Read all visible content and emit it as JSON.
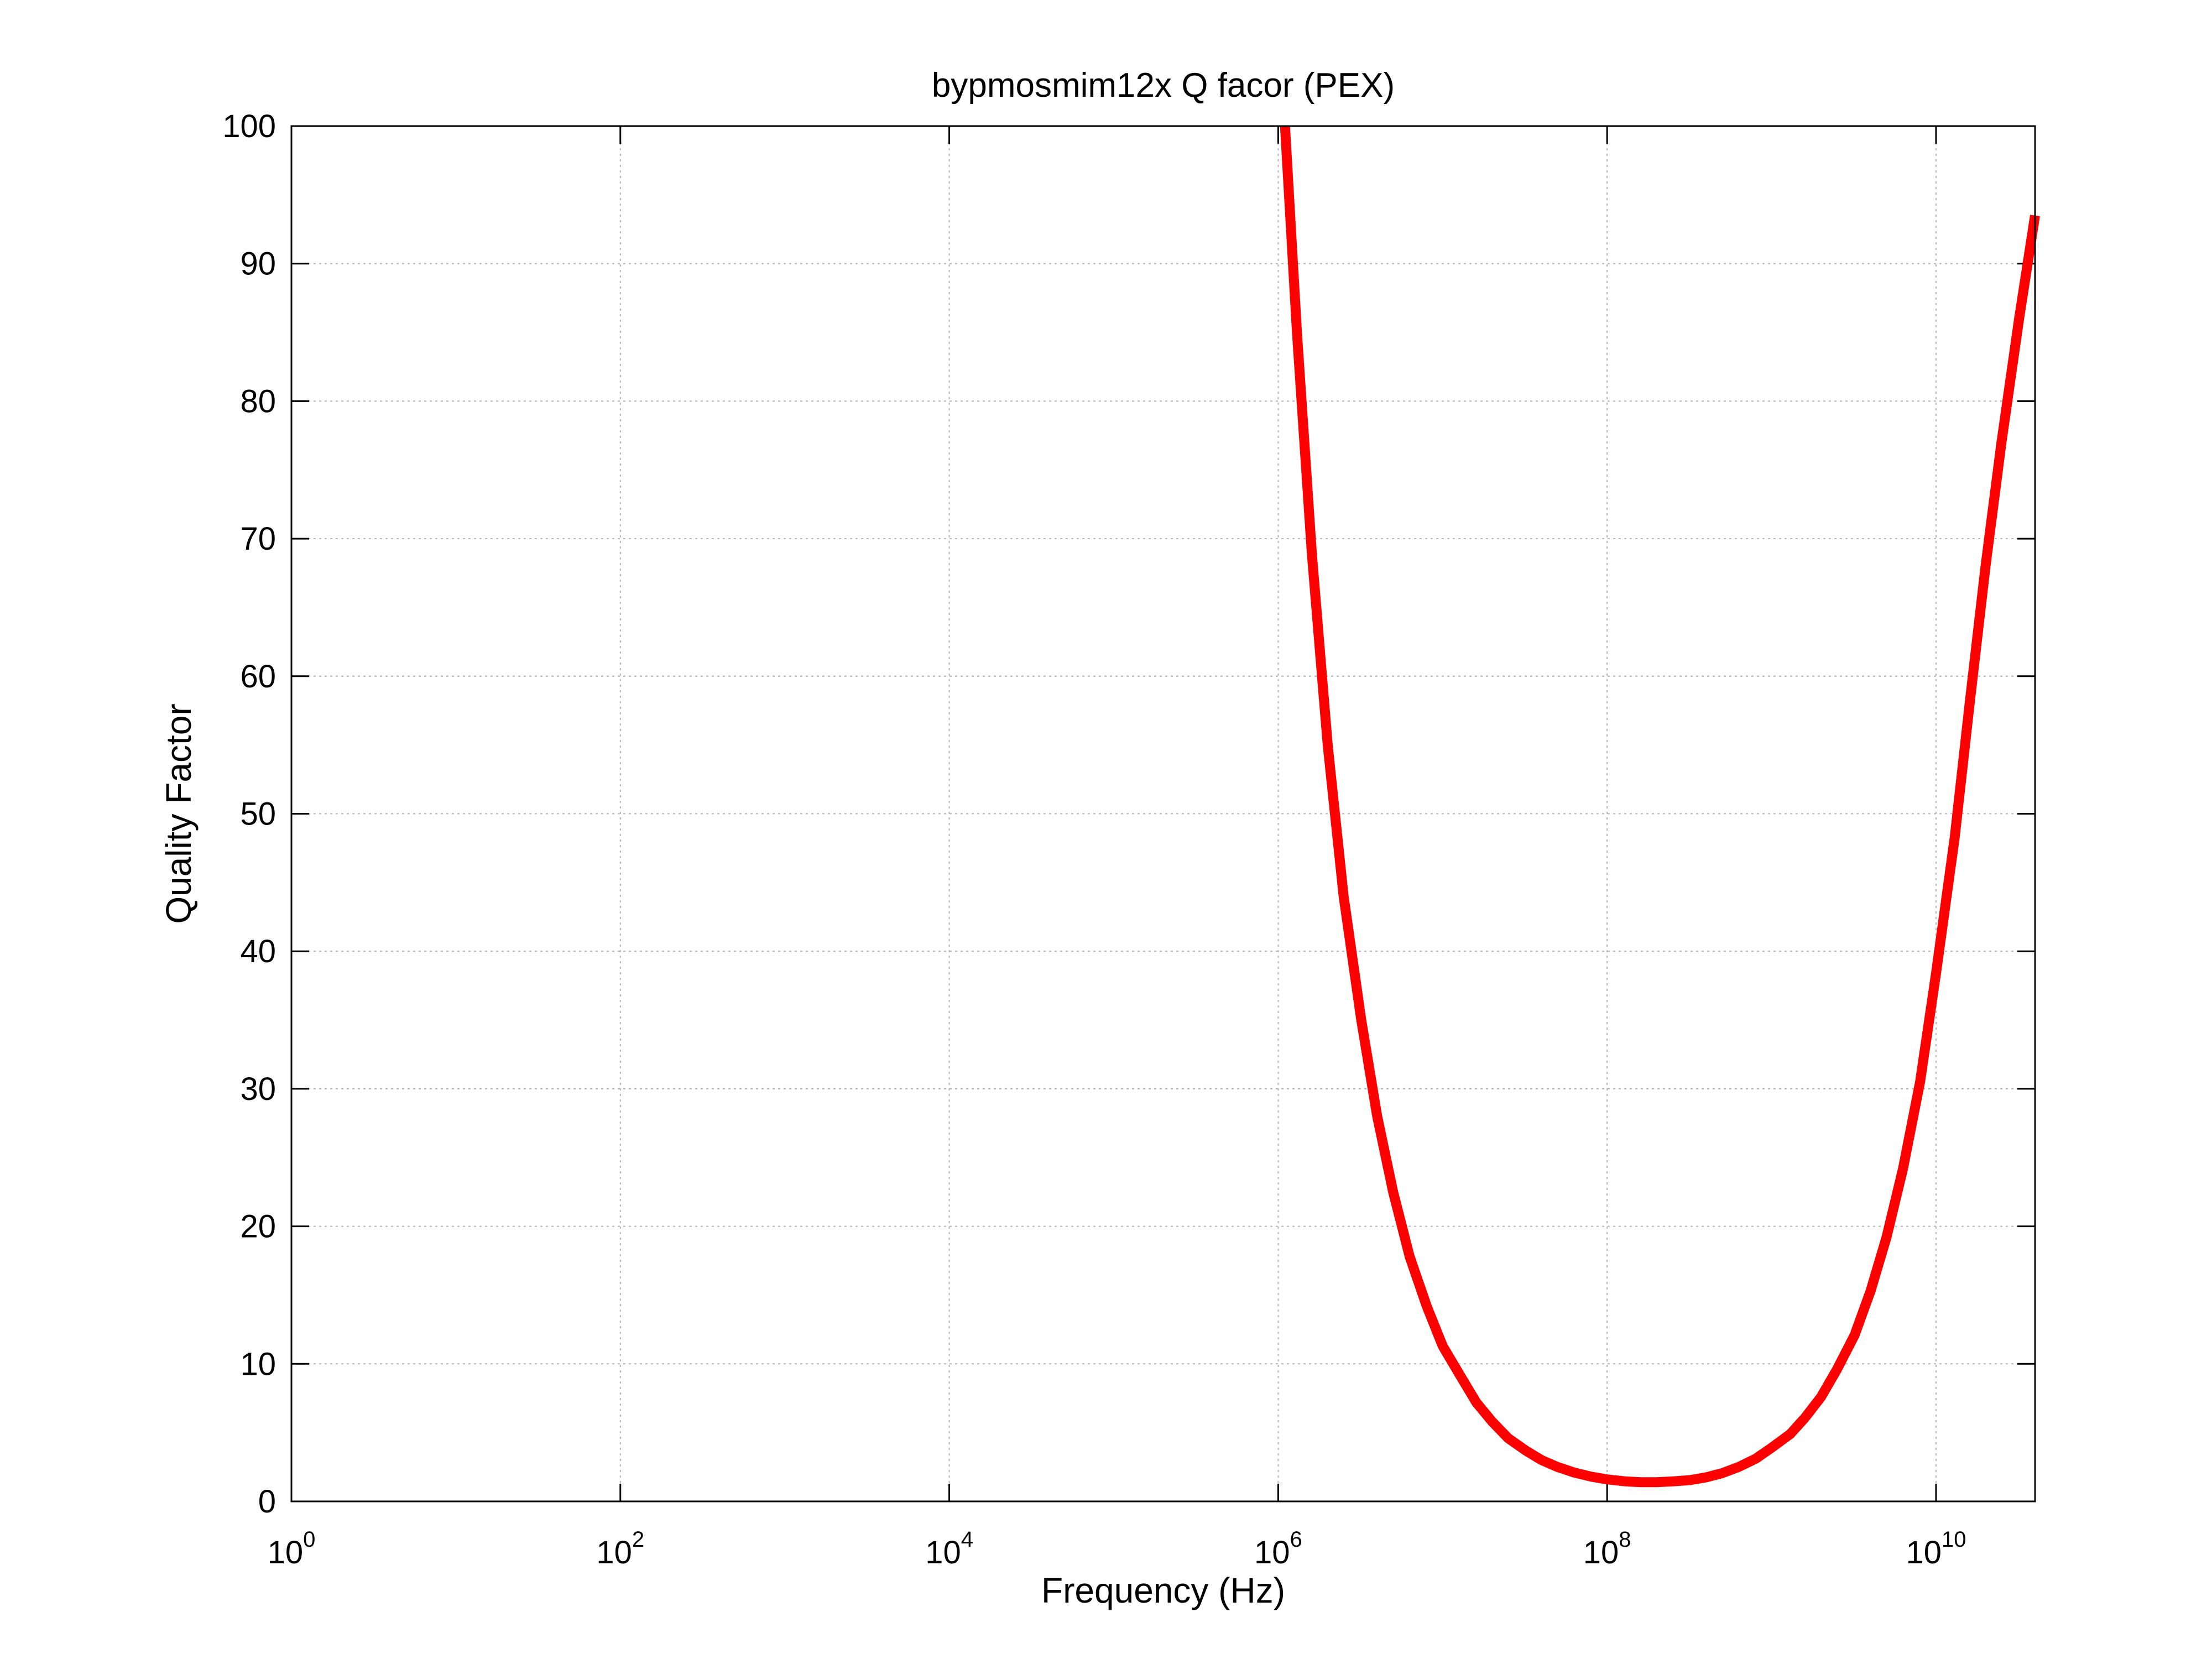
{
  "chart_data": {
    "type": "line",
    "title": "bypmosmim12x Q facor  (PEX)",
    "xlabel": "Frequency (Hz)",
    "ylabel": "Quality Factor",
    "xscale": "log",
    "xlim": [
      1,
      40000000000
    ],
    "ylim": [
      0,
      100
    ],
    "x_ticks": [
      {
        "base": "10",
        "exp": "0",
        "value": 1
      },
      {
        "base": "10",
        "exp": "2",
        "value": 100
      },
      {
        "base": "10",
        "exp": "4",
        "value": 10000
      },
      {
        "base": "10",
        "exp": "6",
        "value": 1000000
      },
      {
        "base": "10",
        "exp": "8",
        "value": 100000000
      },
      {
        "base": "10",
        "exp": "10",
        "value": 10000000000
      }
    ],
    "y_ticks": [
      "0",
      "10",
      "20",
      "30",
      "40",
      "50",
      "60",
      "70",
      "80",
      "90",
      "100"
    ],
    "grid": true,
    "legend": "none",
    "series": [
      {
        "color": "#ff0000",
        "x": [
          1100000,
          1300000,
          1600000,
          2000000,
          2500000,
          3200000,
          4000000,
          5000000,
          6300000,
          8000000,
          10000000,
          13000000,
          16000000,
          20000000,
          25000000,
          32000000,
          40000000,
          50000000,
          63000000,
          80000000,
          100000000,
          130000000,
          160000000,
          200000000,
          250000000,
          320000000,
          400000000,
          500000000,
          630000000,
          800000000,
          1000000000,
          1300000000,
          1600000000,
          2000000000,
          2500000000,
          3200000000,
          4000000000,
          5000000000,
          6300000000,
          8000000000,
          10000000000,
          13000000000,
          16000000000,
          20000000000,
          25000000000,
          32000000000,
          40000000000
        ],
        "y": [
          100,
          85,
          69,
          55,
          44,
          35,
          28,
          22.5,
          17.8,
          14.2,
          11.3,
          9.0,
          7.2,
          5.8,
          4.6,
          3.7,
          3.0,
          2.5,
          2.1,
          1.8,
          1.6,
          1.45,
          1.4,
          1.4,
          1.45,
          1.55,
          1.75,
          2.05,
          2.5,
          3.1,
          3.9,
          4.9,
          6.1,
          7.6,
          9.6,
          12.1,
          15.3,
          19.2,
          24.2,
          30.5,
          38.4,
          48.3,
          58.0,
          68.0,
          77.0,
          86.0,
          93.5
        ]
      }
    ]
  }
}
